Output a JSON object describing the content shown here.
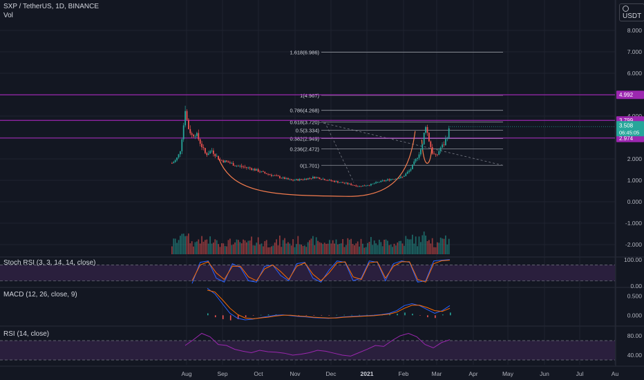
{
  "header": {
    "symbol": "SXP / TetherUS, 1D, BINANCE",
    "volume_label": "Vol"
  },
  "axis_controls": {
    "currency": "USDT",
    "icon": "settings-icon"
  },
  "colors": {
    "background": "#131722",
    "grid": "#1f2330",
    "axis_text": "#b2b5be",
    "up": "#26a69a",
    "down": "#ef5350",
    "level_line": "#9c27b0",
    "fib_line": "#9598a1",
    "cup_curve": "#f57c4e",
    "indicator_band": "#2a1f3d",
    "rsi_line": "#9c27b0",
    "macd_line": "#2962ff",
    "signal_line": "#ff6d00",
    "price_tag": "#26a69a"
  },
  "chart_data": [
    {
      "type": "candlestick",
      "title": "SXP / TetherUS, 1D, BINANCE",
      "x": [
        "Aug",
        "Sep",
        "Oct",
        "Nov",
        "Dec",
        "2021",
        "Feb",
        "Mar",
        "Apr",
        "May",
        "Jun",
        "Jul",
        "Au"
      ],
      "y_ticks": [
        "8.000",
        "7.000",
        "6.000",
        "5.000",
        "4.000",
        "3.000",
        "2.000",
        "1.000",
        "0.000",
        "-1.000",
        "-2.000"
      ],
      "ylim": [
        -2.2,
        8.8
      ],
      "series": [
        {
          "points": [
            {
              "x": 0.0,
              "close": 1.8
            },
            {
              "x": 0.1,
              "close": 1.95
            },
            {
              "x": 0.2,
              "close": 2.3
            },
            {
              "x": 0.3,
              "close": 3.7
            },
            {
              "x": 0.33,
              "close": 4.4
            },
            {
              "x": 0.4,
              "close": 3.5
            },
            {
              "x": 0.5,
              "close": 3.1
            },
            {
              "x": 0.6,
              "close": 3.2
            },
            {
              "x": 0.7,
              "close": 2.8
            },
            {
              "x": 0.85,
              "close": 2.2
            },
            {
              "x": 1.0,
              "close": 2.4
            },
            {
              "x": 1.2,
              "close": 1.95
            },
            {
              "x": 1.4,
              "close": 1.85
            },
            {
              "x": 1.6,
              "close": 1.7
            },
            {
              "x": 2.0,
              "close": 1.55
            },
            {
              "x": 2.3,
              "close": 1.35
            },
            {
              "x": 2.6,
              "close": 1.2
            },
            {
              "x": 3.0,
              "close": 1.0
            },
            {
              "x": 3.3,
              "close": 1.05
            },
            {
              "x": 3.6,
              "close": 1.15
            },
            {
              "x": 4.0,
              "close": 0.98
            },
            {
              "x": 4.4,
              "close": 0.85
            },
            {
              "x": 4.7,
              "close": 0.72
            },
            {
              "x": 5.0,
              "close": 0.8
            },
            {
              "x": 5.2,
              "close": 0.92
            },
            {
              "x": 5.5,
              "close": 1.05
            },
            {
              "x": 5.8,
              "close": 1.15
            },
            {
              "x": 6.0,
              "close": 1.5
            },
            {
              "x": 6.15,
              "close": 2.0
            },
            {
              "x": 6.3,
              "close": 2.6
            },
            {
              "x": 6.38,
              "close": 3.65
            },
            {
              "x": 6.45,
              "close": 3.0
            },
            {
              "x": 6.55,
              "close": 2.3
            },
            {
              "x": 6.65,
              "close": 2.1
            },
            {
              "x": 6.75,
              "close": 2.5
            },
            {
              "x": 6.85,
              "close": 2.7
            },
            {
              "x": 6.95,
              "close": 3.2
            },
            {
              "x": 7.0,
              "close": 3.52
            }
          ]
        }
      ],
      "horizontal_levels": [
        {
          "value": 4.992,
          "label": "4.992"
        },
        {
          "value": 3.799,
          "label": "3.799"
        },
        {
          "value": 2.974,
          "label": "2.974"
        }
      ],
      "last_price": {
        "value": 3.508,
        "label": "3.508",
        "countdown": "06:45:05"
      },
      "fibonacci": [
        {
          "label": "1.618(6.986)",
          "value": 6.986
        },
        {
          "label": "1(4.967)",
          "value": 4.967
        },
        {
          "label": "0.786(4.268)",
          "value": 4.268
        },
        {
          "label": "0.618(3.720)",
          "value": 3.72
        },
        {
          "label": "0.5(3.334)",
          "value": 3.334
        },
        {
          "label": "0.382(2.949)",
          "value": 2.949
        },
        {
          "label": "0.236(2.472)",
          "value": 2.472
        },
        {
          "label": "0(1.701)",
          "value": 1.701
        }
      ]
    },
    {
      "type": "area",
      "title": "Stoch RSI (3, 3, 14, 14, close)",
      "y_ticks": [
        "100.00",
        "0.00"
      ],
      "ylim": [
        -5,
        110
      ],
      "series": [
        {
          "values": [
            10,
            90,
            95,
            30,
            15,
            85,
            70,
            20,
            15,
            75,
            80,
            40,
            20,
            85,
            90,
            30,
            15,
            60,
            95,
            90,
            20,
            30,
            95,
            90,
            20,
            85,
            95,
            90,
            15,
            20,
            95,
            98,
            100
          ]
        },
        {
          "values": [
            20,
            80,
            92,
            50,
            25,
            75,
            75,
            35,
            20,
            65,
            80,
            55,
            25,
            75,
            88,
            45,
            20,
            50,
            88,
            92,
            35,
            25,
            88,
            92,
            30,
            75,
            92,
            92,
            25,
            15,
            85,
            96,
            98
          ]
        }
      ]
    },
    {
      "type": "line",
      "title": "MACD (12, 26, close, 9)",
      "y_ticks": [
        "0.500",
        "0.000"
      ],
      "ylim": [
        -0.28,
        0.72
      ],
      "series": [
        {
          "values": [
            0.7,
            0.55,
            0.3,
            0.05,
            -0.08,
            -0.12,
            -0.1,
            -0.06,
            -0.03,
            0.0,
            0.01,
            -0.01,
            -0.03,
            -0.04,
            -0.06,
            -0.07,
            -0.08,
            -0.06,
            -0.04,
            -0.03,
            -0.02,
            -0.01,
            0.0,
            0.02,
            0.05,
            0.12,
            0.25,
            0.3,
            0.25,
            0.15,
            0.05,
            0.12,
            0.25
          ]
        },
        {
          "values": [
            0.65,
            0.6,
            0.4,
            0.18,
            0.02,
            -0.07,
            -0.09,
            -0.07,
            -0.05,
            -0.02,
            0.0,
            0.0,
            -0.02,
            -0.03,
            -0.05,
            -0.06,
            -0.07,
            -0.07,
            -0.05,
            -0.04,
            -0.03,
            -0.02,
            -0.01,
            0.01,
            0.03,
            0.08,
            0.18,
            0.26,
            0.26,
            0.2,
            0.12,
            0.1,
            0.18
          ]
        }
      ]
    },
    {
      "type": "line",
      "title": "RSI (14, close)",
      "y_ticks": [
        "80.00",
        "40.00"
      ],
      "ylim": [
        20,
        100
      ],
      "series": [
        {
          "values": [
            60,
            72,
            85,
            78,
            62,
            60,
            52,
            48,
            45,
            50,
            47,
            46,
            44,
            40,
            42,
            45,
            50,
            48,
            44,
            40,
            38,
            45,
            52,
            60,
            58,
            70,
            80,
            85,
            78,
            62,
            55,
            66,
            72
          ]
        }
      ]
    }
  ]
}
